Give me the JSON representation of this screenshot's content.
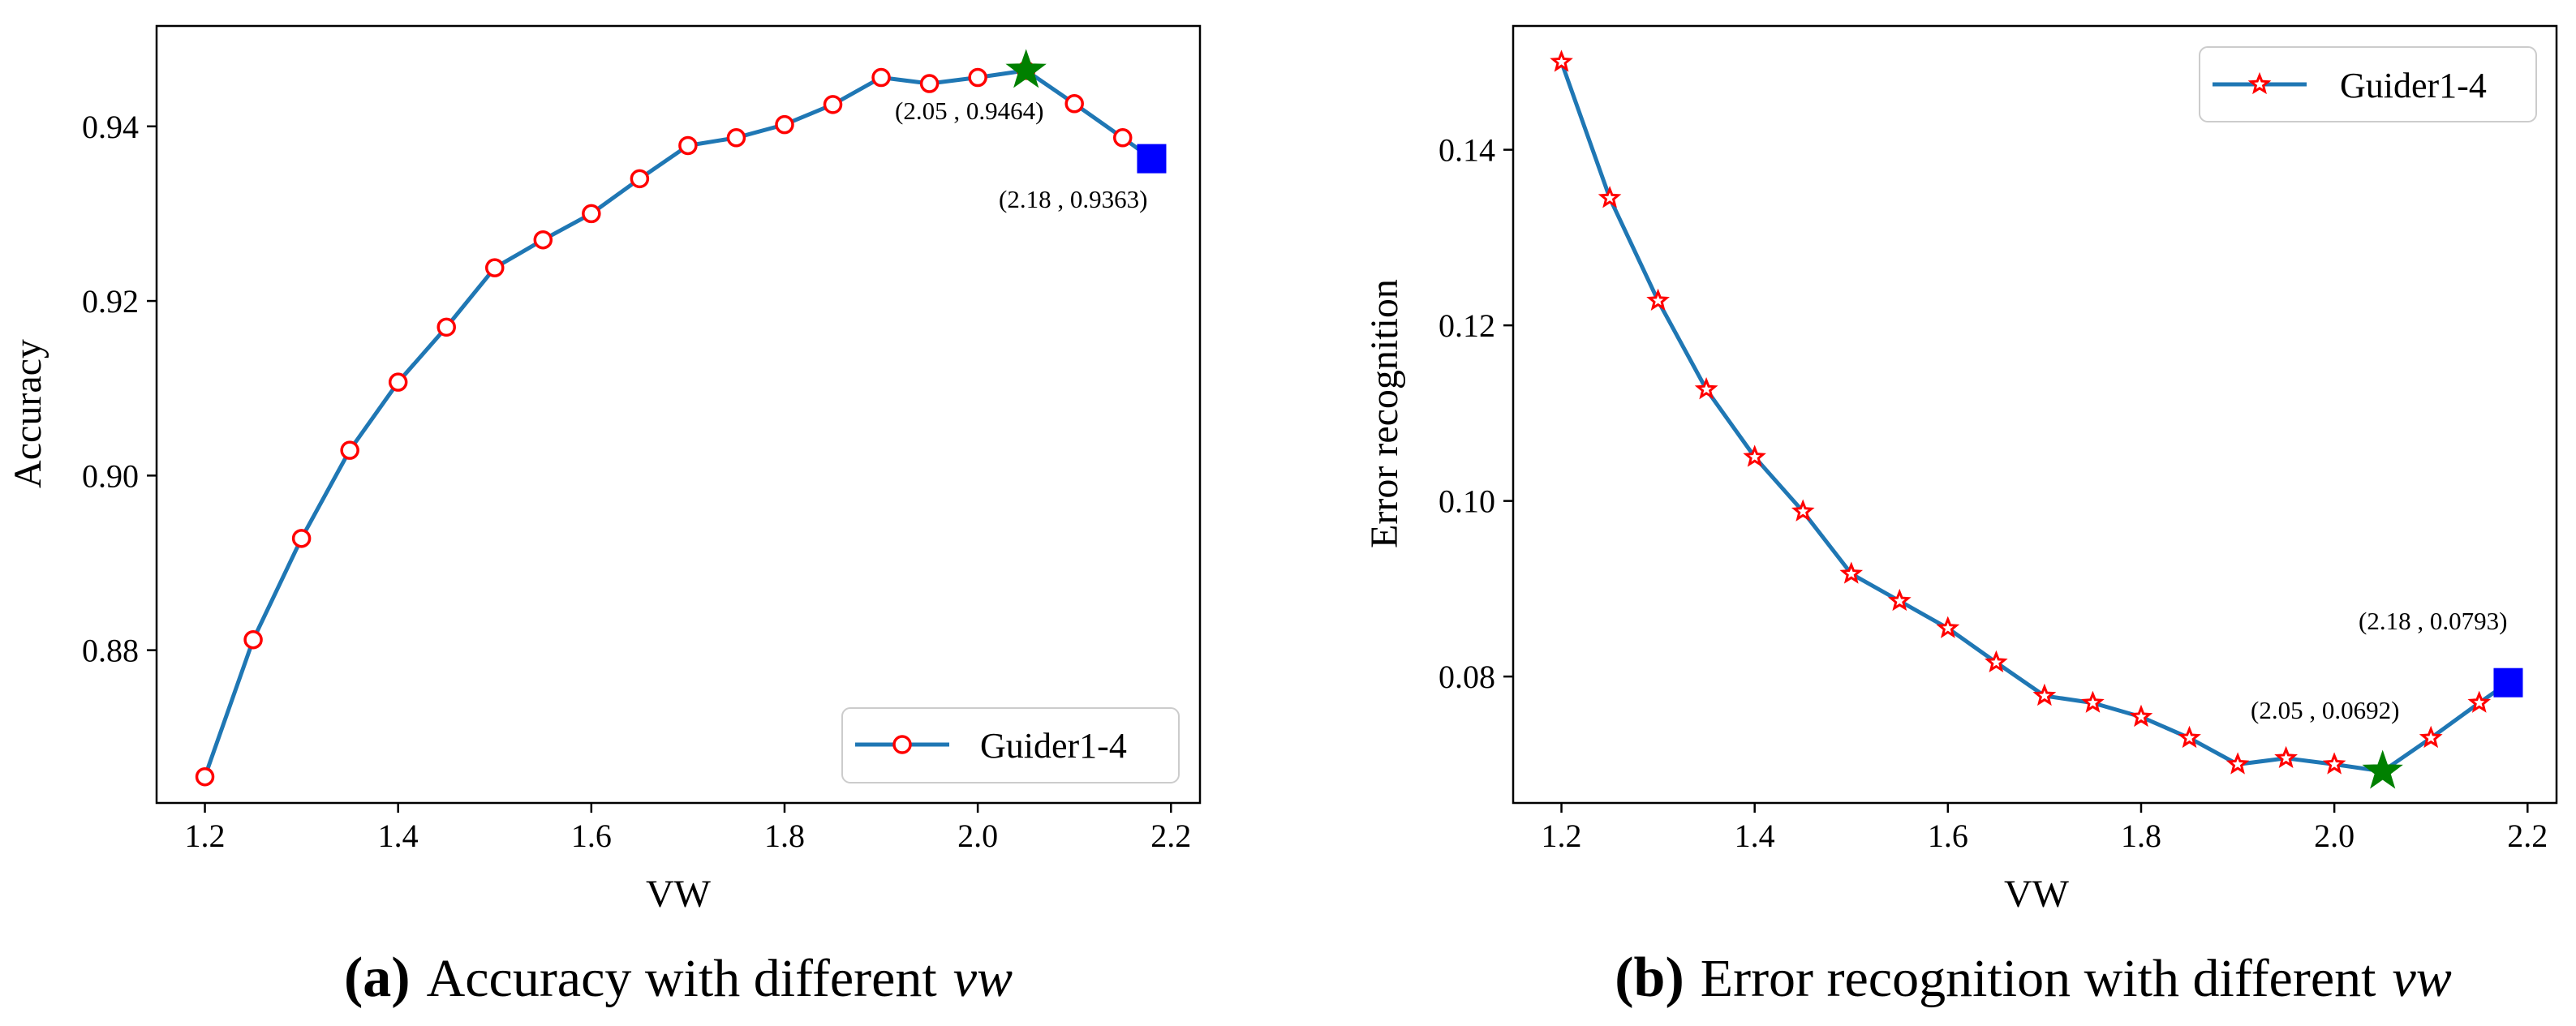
{
  "chart_data": [
    {
      "type": "line",
      "x": [
        1.2,
        1.25,
        1.3,
        1.35,
        1.4,
        1.45,
        1.5,
        1.55,
        1.6,
        1.65,
        1.7,
        1.75,
        1.8,
        1.85,
        1.9,
        1.95,
        2.0,
        2.05,
        2.1,
        2.15
      ],
      "series": [
        {
          "name": "Guider1-4",
          "values": [
            0.8655,
            0.8812,
            0.8928,
            0.9029,
            0.9107,
            0.917,
            0.9238,
            0.927,
            0.93,
            0.934,
            0.9378,
            0.9387,
            0.9402,
            0.9425,
            0.9456,
            0.9449,
            0.9456,
            0.9464,
            0.9426,
            0.9387
          ],
          "color": "#1f77b4",
          "marker": "circle",
          "marker_color": "#ff0000"
        }
      ],
      "end_point": {
        "x": 2.18,
        "y": 0.9363,
        "color": "#0000ff",
        "marker": "square"
      },
      "highlight_points": [
        {
          "x": 2.05,
          "y": 0.9464,
          "label": "(2.05 , 0.9464)",
          "color": "#008000",
          "marker": "star"
        },
        {
          "x": 2.18,
          "y": 0.9363,
          "label": "(2.18 , 0.9363)",
          "color": "#0000ff",
          "marker": "square"
        }
      ],
      "xlabel": "VW",
      "ylabel": "Accuracy",
      "xlim": [
        1.15,
        2.23
      ],
      "ylim": [
        0.8625,
        0.9515
      ],
      "xticks": [
        1.2,
        1.4,
        1.6,
        1.8,
        2.0,
        2.2
      ],
      "xtick_labels": [
        "1.2",
        "1.4",
        "1.6",
        "1.8",
        "2.0",
        "2.2"
      ],
      "yticks": [
        0.88,
        0.9,
        0.92,
        0.94
      ],
      "ytick_labels": [
        "0.88",
        "0.90",
        "0.92",
        "0.94"
      ],
      "legend_position": "lower-right",
      "grid": false,
      "caption_letter": "(a)",
      "caption_text": "Accuracy with different",
      "caption_var": "vw"
    },
    {
      "type": "line",
      "x": [
        1.2,
        1.25,
        1.3,
        1.35,
        1.4,
        1.45,
        1.5,
        1.55,
        1.6,
        1.65,
        1.7,
        1.75,
        1.8,
        1.85,
        1.9,
        1.95,
        2.0,
        2.05,
        2.1,
        2.15
      ],
      "series": [
        {
          "name": "Guider1-4",
          "values": [
            0.15,
            0.1345,
            0.1228,
            0.1127,
            0.105,
            0.0988,
            0.0917,
            0.0886,
            0.0855,
            0.0816,
            0.0778,
            0.077,
            0.0754,
            0.073,
            0.07,
            0.0707,
            0.07,
            0.0692,
            0.073,
            0.077
          ],
          "color": "#1f77b4",
          "marker": "star",
          "marker_color": "#ff0000"
        }
      ],
      "end_point": {
        "x": 2.18,
        "y": 0.0793,
        "color": "#0000ff",
        "marker": "square"
      },
      "highlight_points": [
        {
          "x": 2.05,
          "y": 0.0692,
          "label": "(2.05 , 0.0692)",
          "color": "#008000",
          "marker": "star"
        },
        {
          "x": 2.18,
          "y": 0.0793,
          "label": "(2.18 , 0.0793)",
          "color": "#0000ff",
          "marker": "square"
        }
      ],
      "xlabel": "VW",
      "ylabel": "Error recognition",
      "xlim": [
        1.15,
        2.23
      ],
      "ylim": [
        0.0656,
        0.1541
      ],
      "xticks": [
        1.2,
        1.4,
        1.6,
        1.8,
        2.0,
        2.2
      ],
      "xtick_labels": [
        "1.2",
        "1.4",
        "1.6",
        "1.8",
        "2.0",
        "2.2"
      ],
      "yticks": [
        0.08,
        0.1,
        0.12,
        0.14
      ],
      "ytick_labels": [
        "0.08",
        "0.10",
        "0.12",
        "0.14"
      ],
      "legend_position": "upper-right",
      "grid": false,
      "caption_letter": "(b)",
      "caption_text": "Error recognition with different",
      "caption_var": "vw"
    }
  ]
}
